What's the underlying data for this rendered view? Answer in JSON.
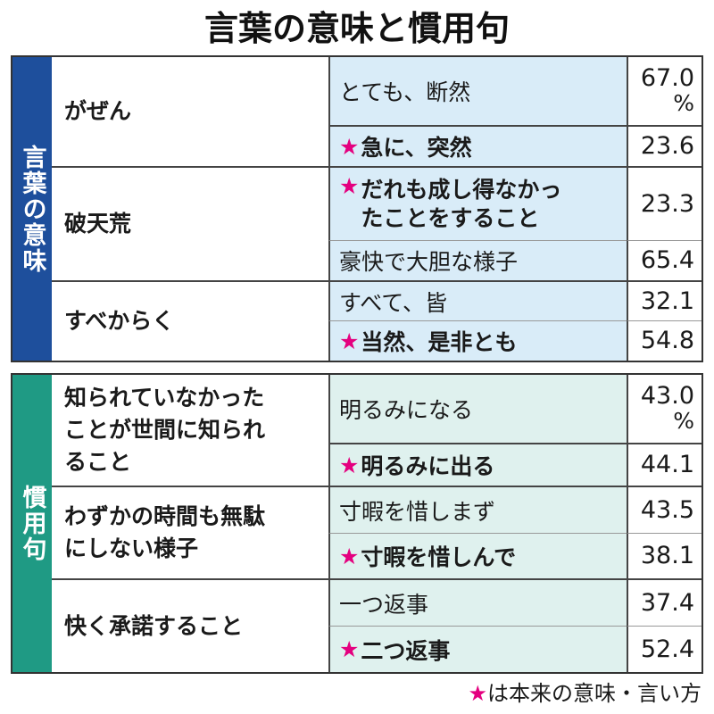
{
  "title": "言葉の意味と慣用句",
  "colors": {
    "section1": "#1e4f9c",
    "section2": "#1f9a84",
    "star": "#e4007f"
  },
  "sections": [
    {
      "label": "言葉の意味",
      "rows": [
        {
          "word": "がぜん",
          "options": [
            {
              "text": "とても、断然",
              "value": "67.0",
              "unit": "%",
              "correct": false
            },
            {
              "text": "急に、突然",
              "value": "23.6",
              "correct": true
            }
          ]
        },
        {
          "word": "破天荒",
          "options": [
            {
              "text_line1": "だれも成し得なかっ",
              "text_line2": "たことをすること",
              "value": "23.3",
              "correct": true
            },
            {
              "text": "豪快で大胆な様子",
              "value": "65.4",
              "correct": false
            }
          ]
        },
        {
          "word": "すべからく",
          "options": [
            {
              "text": "すべて、皆",
              "value": "32.1",
              "correct": false
            },
            {
              "text": "当然、是非とも",
              "value": "54.8",
              "correct": true
            }
          ]
        }
      ]
    },
    {
      "label": "慣用句",
      "rows": [
        {
          "word_line1": "知られていなかった",
          "word_line2": "ことが世間に知られ",
          "word_line3": "ること",
          "options": [
            {
              "text": "明るみになる",
              "value": "43.0",
              "unit": "%",
              "correct": false
            },
            {
              "text": "明るみに出る",
              "value": "44.1",
              "correct": true
            }
          ]
        },
        {
          "word_line1": "わずかの時間も無駄",
          "word_line2": "にしない様子",
          "options": [
            {
              "text": "寸暇を惜しまず",
              "value": "43.5",
              "correct": false
            },
            {
              "text": "寸暇を惜しんで",
              "value": "38.1",
              "correct": true
            }
          ]
        },
        {
          "word": "快く承諾すること",
          "options": [
            {
              "text": "一つ返事",
              "value": "37.4",
              "correct": false
            },
            {
              "text": "二つ返事",
              "value": "52.4",
              "correct": true
            }
          ]
        }
      ]
    }
  ],
  "star": "★",
  "footnote": "は本来の意味・言い方"
}
